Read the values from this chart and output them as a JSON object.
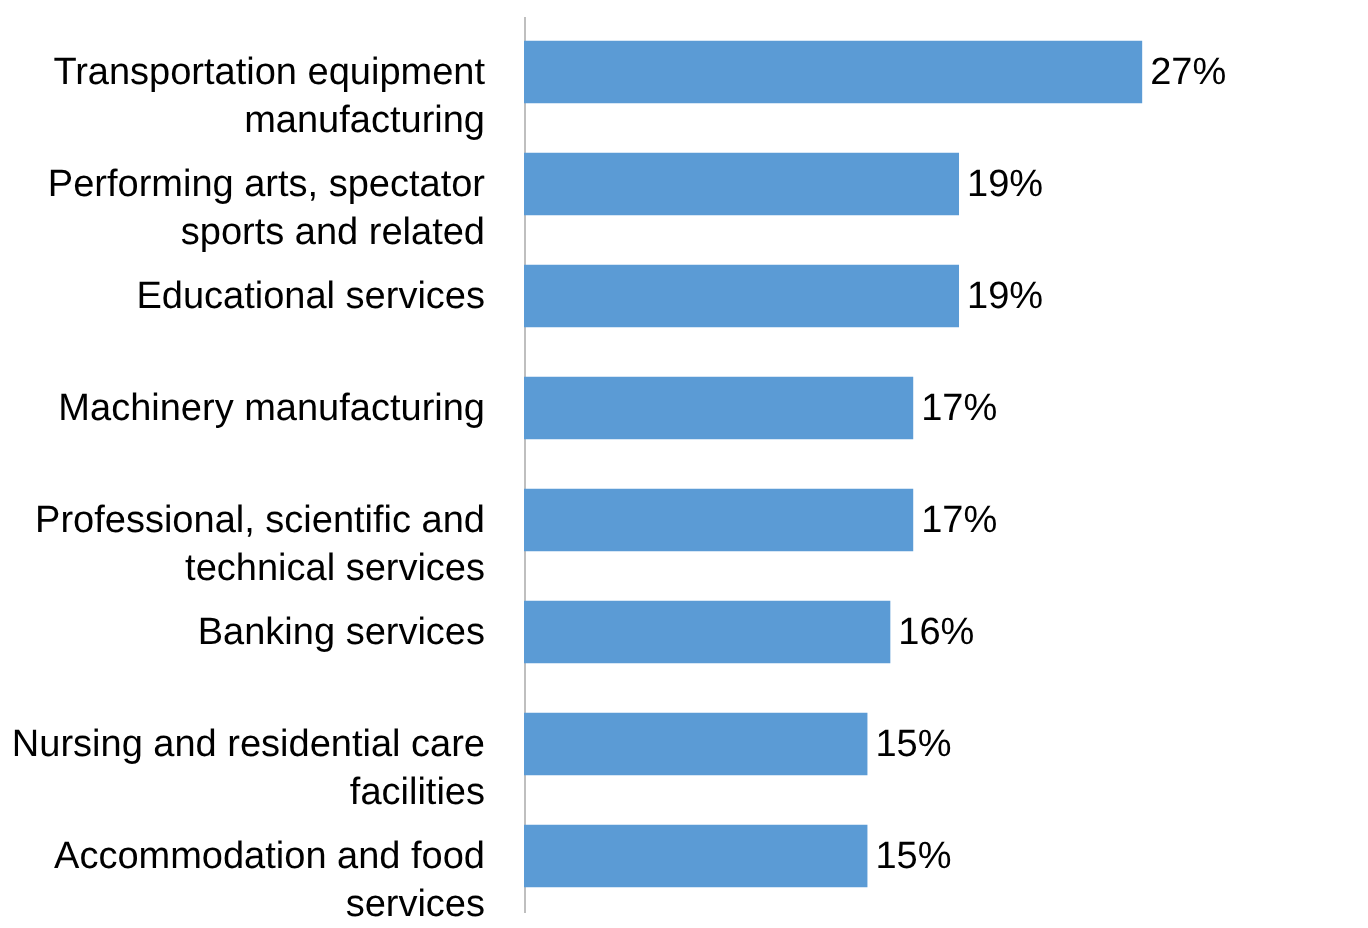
{
  "chart_data": {
    "type": "bar",
    "orientation": "horizontal",
    "categories": [
      "Transportation equipment manufacturing",
      "Performing arts, spectator sports and related",
      "Educational services",
      "Machinery manufacturing",
      "Professional, scientific and technical services",
      "Banking services",
      "Nursing and residential care facilities",
      "Accommodation and food services"
    ],
    "values": [
      27,
      19,
      19,
      17,
      17,
      16,
      15,
      15
    ],
    "value_labels": [
      "27%",
      "19%",
      "19%",
      "17%",
      "17%",
      "16%",
      "15%",
      "15%"
    ],
    "color": "#5b9bd5"
  }
}
